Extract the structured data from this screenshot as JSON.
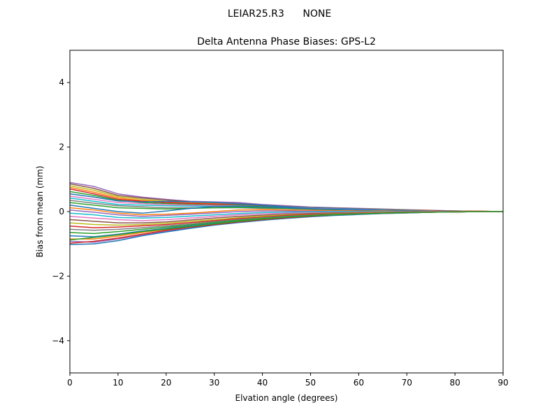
{
  "chart_data": {
    "type": "line",
    "suptitle": "LEIAR25.R3      NONE",
    "title": "Delta Antenna Phase Biases: GPS-L2",
    "xlabel": "Elvation angle (degrees)",
    "ylabel": "Bias from mean (mm)",
    "xlim": [
      0,
      90
    ],
    "ylim": [
      -5,
      5
    ],
    "xticks": [
      0,
      10,
      20,
      30,
      40,
      50,
      60,
      70,
      80,
      90
    ],
    "yticks": [
      -4,
      -2,
      0,
      2,
      4
    ],
    "ytick_labels": [
      "−4",
      "−2",
      "0",
      "2",
      "4"
    ],
    "grid": false,
    "legend": "none",
    "x": [
      0,
      5,
      10,
      15,
      20,
      25,
      30,
      35,
      40,
      45,
      50,
      55,
      60,
      65,
      70,
      75,
      80,
      85,
      90
    ],
    "series": [
      {
        "color": "#9467bd",
        "values": [
          0.9,
          0.78,
          0.55,
          0.45,
          0.38,
          0.32,
          0.3,
          0.28,
          0.22,
          0.18,
          0.14,
          0.12,
          0.1,
          0.08,
          0.06,
          0.04,
          0.02,
          0.01,
          0.0
        ]
      },
      {
        "color": "#8c564b",
        "values": [
          0.86,
          0.72,
          0.5,
          0.42,
          0.36,
          0.3,
          0.27,
          0.25,
          0.2,
          0.16,
          0.13,
          0.11,
          0.09,
          0.07,
          0.05,
          0.03,
          0.02,
          0.01,
          0.0
        ]
      },
      {
        "color": "#bcbd22",
        "values": [
          0.8,
          0.66,
          0.46,
          0.38,
          0.32,
          0.28,
          0.25,
          0.23,
          0.19,
          0.15,
          0.12,
          0.1,
          0.08,
          0.07,
          0.05,
          0.03,
          0.02,
          0.01,
          0.0
        ]
      },
      {
        "color": "#ff7f0e",
        "values": [
          0.75,
          0.6,
          0.42,
          0.34,
          0.3,
          0.27,
          0.24,
          0.22,
          0.18,
          0.14,
          0.11,
          0.1,
          0.08,
          0.06,
          0.05,
          0.03,
          0.02,
          0.01,
          0.0
        ]
      },
      {
        "color": "#d62728",
        "values": [
          0.7,
          0.55,
          0.38,
          0.32,
          0.28,
          0.25,
          0.23,
          0.21,
          0.17,
          0.14,
          0.11,
          0.09,
          0.07,
          0.06,
          0.04,
          0.03,
          0.02,
          0.01,
          0.0
        ]
      },
      {
        "color": "#2ca02c",
        "values": [
          0.62,
          0.5,
          0.35,
          0.28,
          0.25,
          0.22,
          0.2,
          0.2,
          0.16,
          0.13,
          0.1,
          0.09,
          0.07,
          0.05,
          0.04,
          0.02,
          0.01,
          0.0,
          0.0
        ]
      },
      {
        "color": "#1f77b4",
        "values": [
          0.55,
          0.45,
          0.33,
          0.3,
          0.32,
          0.3,
          0.28,
          0.24,
          0.2,
          0.15,
          0.12,
          0.1,
          0.08,
          0.06,
          0.04,
          0.02,
          0.01,
          0.0,
          0.0
        ]
      },
      {
        "color": "#e377c2",
        "values": [
          0.48,
          0.38,
          0.28,
          0.25,
          0.22,
          0.2,
          0.19,
          0.18,
          0.15,
          0.12,
          0.1,
          0.08,
          0.06,
          0.05,
          0.03,
          0.02,
          0.01,
          0.0,
          0.0
        ]
      },
      {
        "color": "#17becf",
        "values": [
          0.42,
          0.32,
          0.22,
          0.2,
          0.18,
          0.17,
          0.16,
          0.15,
          0.13,
          0.11,
          0.09,
          0.07,
          0.05,
          0.04,
          0.03,
          0.02,
          0.01,
          0.0,
          0.0
        ]
      },
      {
        "color": "#7f7f7f",
        "values": [
          0.35,
          0.26,
          0.18,
          0.15,
          0.12,
          0.12,
          0.12,
          0.12,
          0.1,
          0.09,
          0.07,
          0.06,
          0.05,
          0.04,
          0.03,
          0.02,
          0.01,
          0.0,
          0.0
        ]
      },
      {
        "color": "#2ca02c",
        "values": [
          0.28,
          0.2,
          0.12,
          0.1,
          0.08,
          0.1,
          0.12,
          0.13,
          0.12,
          0.1,
          0.08,
          0.06,
          0.05,
          0.03,
          0.02,
          0.01,
          0.0,
          0.0,
          0.0
        ]
      },
      {
        "color": "#1f77b4",
        "values": [
          0.2,
          0.1,
          0.0,
          -0.05,
          0.02,
          0.1,
          0.16,
          0.17,
          0.15,
          0.12,
          0.09,
          0.07,
          0.05,
          0.04,
          0.03,
          0.02,
          0.01,
          0.0,
          0.0
        ]
      },
      {
        "color": "#ff7f0e",
        "values": [
          0.12,
          0.05,
          -0.05,
          -0.1,
          -0.08,
          -0.05,
          0.0,
          0.05,
          0.06,
          0.05,
          0.04,
          0.03,
          0.02,
          0.02,
          0.01,
          0.01,
          0.0,
          0.0,
          0.0
        ]
      },
      {
        "color": "#9467bd",
        "values": [
          0.05,
          -0.02,
          -0.1,
          -0.15,
          -0.12,
          -0.08,
          -0.04,
          0.0,
          0.02,
          0.02,
          0.01,
          0.01,
          0.0,
          0.0,
          0.0,
          0.0,
          0.0,
          0.0,
          0.0
        ]
      },
      {
        "color": "#17becf",
        "values": [
          -0.05,
          -0.1,
          -0.18,
          -0.2,
          -0.18,
          -0.14,
          -0.1,
          -0.06,
          -0.03,
          -0.02,
          -0.01,
          0.0,
          0.0,
          0.0,
          0.0,
          0.0,
          0.0,
          0.0,
          0.0
        ]
      },
      {
        "color": "#e377c2",
        "values": [
          -0.15,
          -0.2,
          -0.25,
          -0.28,
          -0.25,
          -0.2,
          -0.15,
          -0.1,
          -0.07,
          -0.05,
          -0.04,
          -0.03,
          -0.02,
          -0.01,
          -0.01,
          0.0,
          0.0,
          0.0,
          0.0
        ]
      },
      {
        "color": "#8c564b",
        "values": [
          -0.25,
          -0.3,
          -0.35,
          -0.35,
          -0.32,
          -0.26,
          -0.2,
          -0.15,
          -0.11,
          -0.08,
          -0.06,
          -0.04,
          -0.03,
          -0.02,
          -0.01,
          -0.01,
          0.0,
          0.0,
          0.0
        ]
      },
      {
        "color": "#bcbd22",
        "values": [
          -0.35,
          -0.4,
          -0.42,
          -0.4,
          -0.36,
          -0.3,
          -0.25,
          -0.19,
          -0.14,
          -0.1,
          -0.08,
          -0.06,
          -0.04,
          -0.03,
          -0.02,
          -0.01,
          0.0,
          0.0,
          0.0
        ]
      },
      {
        "color": "#d62728",
        "values": [
          -0.45,
          -0.5,
          -0.48,
          -0.44,
          -0.4,
          -0.34,
          -0.28,
          -0.22,
          -0.17,
          -0.12,
          -0.09,
          -0.07,
          -0.05,
          -0.04,
          -0.02,
          -0.01,
          0.0,
          0.0,
          0.0
        ]
      },
      {
        "color": "#7f7f7f",
        "values": [
          -0.55,
          -0.58,
          -0.55,
          -0.5,
          -0.44,
          -0.38,
          -0.31,
          -0.25,
          -0.19,
          -0.14,
          -0.11,
          -0.08,
          -0.06,
          -0.04,
          -0.03,
          -0.02,
          -0.01,
          0.0,
          0.0
        ]
      },
      {
        "color": "#2ca02c",
        "values": [
          -0.65,
          -0.68,
          -0.62,
          -0.55,
          -0.48,
          -0.41,
          -0.34,
          -0.27,
          -0.21,
          -0.16,
          -0.12,
          -0.09,
          -0.07,
          -0.05,
          -0.03,
          -0.02,
          -0.01,
          0.0,
          0.0
        ]
      },
      {
        "color": "#1f77b4",
        "values": [
          -0.75,
          -0.78,
          -0.7,
          -0.6,
          -0.52,
          -0.44,
          -0.37,
          -0.3,
          -0.23,
          -0.17,
          -0.13,
          -0.1,
          -0.07,
          -0.05,
          -0.03,
          -0.02,
          -0.01,
          0.0,
          0.0
        ]
      },
      {
        "color": "#ff7f0e",
        "values": [
          -0.85,
          -0.85,
          -0.76,
          -0.65,
          -0.55,
          -0.47,
          -0.39,
          -0.32,
          -0.25,
          -0.19,
          -0.14,
          -0.11,
          -0.08,
          -0.05,
          -0.04,
          -0.02,
          -0.01,
          0.0,
          0.0
        ]
      },
      {
        "color": "#9467bd",
        "values": [
          -0.92,
          -0.95,
          -0.85,
          -0.72,
          -0.6,
          -0.5,
          -0.41,
          -0.33,
          -0.26,
          -0.2,
          -0.15,
          -0.11,
          -0.08,
          -0.06,
          -0.04,
          -0.02,
          -0.01,
          0.0,
          0.0
        ]
      },
      {
        "color": "#1f77b4",
        "values": [
          -1.02,
          -1.0,
          -0.9,
          -0.75,
          -0.63,
          -0.52,
          -0.42,
          -0.34,
          -0.27,
          -0.21,
          -0.16,
          -0.12,
          -0.09,
          -0.06,
          -0.04,
          -0.02,
          -0.01,
          0.0,
          0.0
        ]
      },
      {
        "color": "#d62728",
        "values": [
          -0.98,
          -0.92,
          -0.82,
          -0.7,
          -0.58,
          -0.48,
          -0.4,
          -0.32,
          -0.25,
          -0.19,
          -0.14,
          -0.1,
          -0.07,
          -0.05,
          -0.03,
          -0.02,
          -0.01,
          0.0,
          0.0
        ]
      },
      {
        "color": "#2ca02c",
        "values": [
          -0.88,
          -0.8,
          -0.72,
          -0.62,
          -0.54,
          -0.46,
          -0.38,
          -0.3,
          -0.23,
          -0.17,
          -0.13,
          -0.1,
          -0.07,
          -0.05,
          -0.03,
          -0.02,
          -0.01,
          0.0,
          0.0
        ]
      }
    ]
  }
}
